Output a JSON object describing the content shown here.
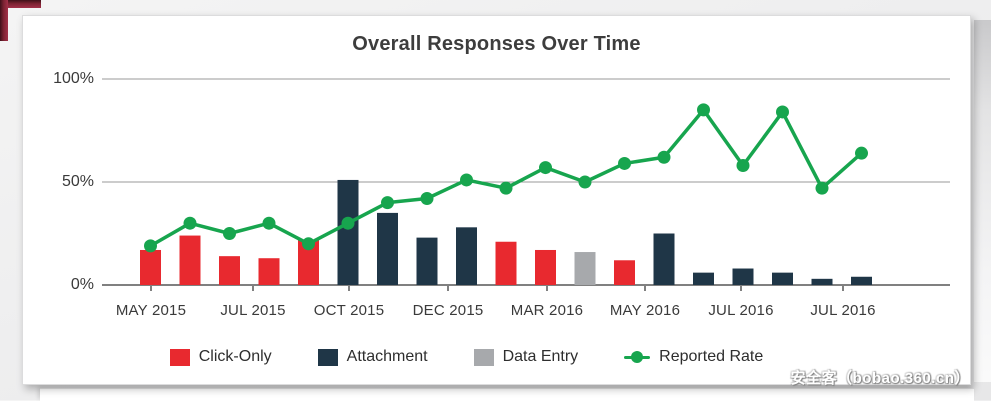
{
  "watermark": {
    "text": "安全客（bobao.360.cn）"
  },
  "chart": {
    "title": "Overall Responses Over Time",
    "y_labels": [
      "100%",
      "50%",
      "0%"
    ],
    "legend": [
      {
        "label": "Click-Only",
        "marker": "square",
        "color": "#e8292f"
      },
      {
        "label": "Attachment",
        "marker": "square",
        "color": "#1f3647"
      },
      {
        "label": "Data Entry",
        "marker": "square",
        "color": "#a7a9ac"
      },
      {
        "label": "Reported Rate",
        "marker": "line-dot",
        "color": "#17a54e"
      }
    ]
  },
  "chart_data": {
    "type": "bar+line",
    "title": "Overall Responses Over Time",
    "xlabel": "",
    "ylabel": "",
    "ylim": [
      0,
      100
    ],
    "y_tick_labels": [
      "0%",
      "50%",
      "100%"
    ],
    "x_tick_labels": [
      "MAY 2015",
      "JUL 2015",
      "OCT 2015",
      "DEC 2015",
      "MAR 2016",
      "MAY 2016",
      "JUL 2016",
      "JUL 2016"
    ],
    "grid": "horizontal",
    "legend_position": "bottom",
    "bar_categories": {
      "Click-Only": "#e8292f",
      "Attachment": "#1f3647",
      "Data Entry": "#a7a9ac"
    },
    "bars": [
      {
        "category": "Click-Only",
        "value": 17
      },
      {
        "category": "Click-Only",
        "value": 24
      },
      {
        "category": "Click-Only",
        "value": 14
      },
      {
        "category": "Click-Only",
        "value": 13
      },
      {
        "category": "Click-Only",
        "value": 22
      },
      {
        "category": "Attachment",
        "value": 51
      },
      {
        "category": "Attachment",
        "value": 35
      },
      {
        "category": "Attachment",
        "value": 23
      },
      {
        "category": "Attachment",
        "value": 28
      },
      {
        "category": "Click-Only",
        "value": 21
      },
      {
        "category": "Click-Only",
        "value": 17
      },
      {
        "category": "Data Entry",
        "value": 16
      },
      {
        "category": "Click-Only",
        "value": 12
      },
      {
        "category": "Attachment",
        "value": 25
      },
      {
        "category": "Attachment",
        "value": 6
      },
      {
        "category": "Attachment",
        "value": 8
      },
      {
        "category": "Attachment",
        "value": 6
      },
      {
        "category": "Attachment",
        "value": 3
      },
      {
        "category": "Attachment",
        "value": 4
      }
    ],
    "line_series": {
      "name": "Reported Rate",
      "color": "#17a54e",
      "values": [
        19,
        30,
        25,
        30,
        20,
        30,
        40,
        42,
        51,
        47,
        57,
        50,
        59,
        62,
        85,
        58,
        84,
        47,
        64
      ]
    },
    "colors": {
      "gridline": "#999999",
      "axis_line": "#808080",
      "title_text": "#3d3d3d",
      "tick_text": "#3a3a3a"
    }
  }
}
